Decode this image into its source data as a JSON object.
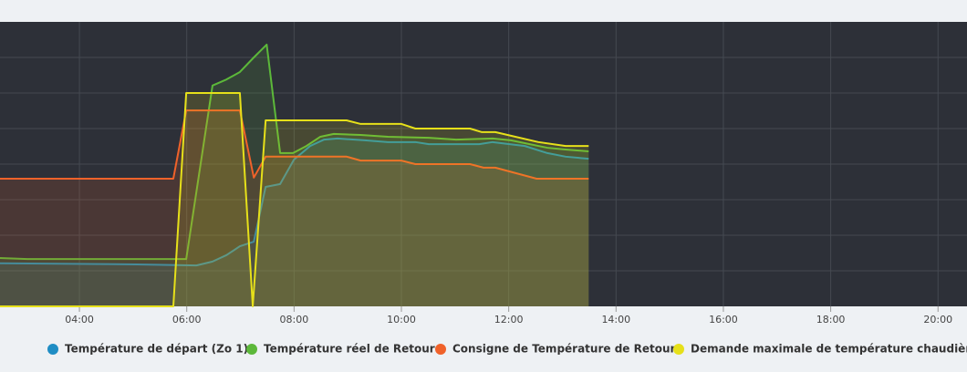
{
  "chart_data": {
    "type": "line",
    "xlim": [
      2.52,
      20.54
    ],
    "ylim": [
      0,
      8
    ],
    "xticks": [
      {
        "value": 4,
        "label": "04:00"
      },
      {
        "value": 6,
        "label": "06:00"
      },
      {
        "value": 8,
        "label": "08:00"
      },
      {
        "value": 10,
        "label": "10:00"
      },
      {
        "value": 12,
        "label": "12:00"
      },
      {
        "value": 14,
        "label": "14:00"
      },
      {
        "value": 16,
        "label": "16:00"
      },
      {
        "value": 18,
        "label": "18:00"
      },
      {
        "value": 20,
        "label": "20:00"
      }
    ],
    "ygrid": [
      1,
      2,
      3,
      4,
      5,
      6,
      7
    ],
    "grid": true,
    "series": [
      {
        "name": "Température de départ (Zo 1)",
        "color": "#1f8dc4",
        "x": [
          2.52,
          5.07,
          6.18,
          6.48,
          6.74,
          6.99,
          7.25,
          7.47,
          7.74,
          8.0,
          8.3,
          8.56,
          8.81,
          9.32,
          9.75,
          10.26,
          10.51,
          11.45,
          11.7,
          12.3,
          12.72,
          13.06,
          13.49
        ],
        "values": [
          1.21,
          1.18,
          1.15,
          1.26,
          1.44,
          1.69,
          1.82,
          3.36,
          3.44,
          4.13,
          4.51,
          4.69,
          4.72,
          4.67,
          4.62,
          4.62,
          4.56,
          4.56,
          4.62,
          4.51,
          4.31,
          4.21,
          4.15
        ]
      },
      {
        "name": "Température réel de Retour",
        "color": "#5cb83a",
        "x": [
          2.52,
          3.03,
          5.75,
          5.99,
          6.48,
          6.74,
          6.99,
          7.25,
          7.49,
          7.74,
          7.98,
          8.23,
          8.49,
          8.74,
          9.24,
          9.75,
          10.51,
          11.02,
          11.7,
          12.04,
          12.72,
          13.06,
          13.49
        ],
        "values": [
          1.36,
          1.33,
          1.33,
          1.33,
          6.21,
          6.38,
          6.59,
          7.0,
          7.36,
          4.31,
          4.31,
          4.51,
          4.77,
          4.85,
          4.82,
          4.77,
          4.74,
          4.69,
          4.72,
          4.67,
          4.46,
          4.41,
          4.36
        ]
      },
      {
        "name": "Consigne de Température de Retour",
        "color": "#f0622a",
        "x": [
          2.52,
          5.75,
          5.99,
          6.99,
          7.25,
          7.47,
          8.98,
          9.24,
          10.0,
          10.26,
          11.28,
          11.53,
          11.75,
          12.52,
          13.49
        ],
        "values": [
          3.59,
          3.59,
          5.51,
          5.51,
          3.62,
          4.21,
          4.21,
          4.1,
          4.1,
          4.0,
          4.0,
          3.9,
          3.9,
          3.59,
          3.59
        ]
      },
      {
        "name": "Demande maximale de température chaudière",
        "color": "#e6e01a",
        "x": [
          2.52,
          5.75,
          5.99,
          6.99,
          7.23,
          7.47,
          8.98,
          9.24,
          10.0,
          10.26,
          11.28,
          11.5,
          11.75,
          12.55,
          13.06,
          13.49
        ],
        "values": [
          0,
          0,
          6.0,
          6.0,
          0,
          5.23,
          5.23,
          5.13,
          5.13,
          5.0,
          5.0,
          4.9,
          4.9,
          4.62,
          4.51,
          4.51
        ]
      }
    ]
  }
}
